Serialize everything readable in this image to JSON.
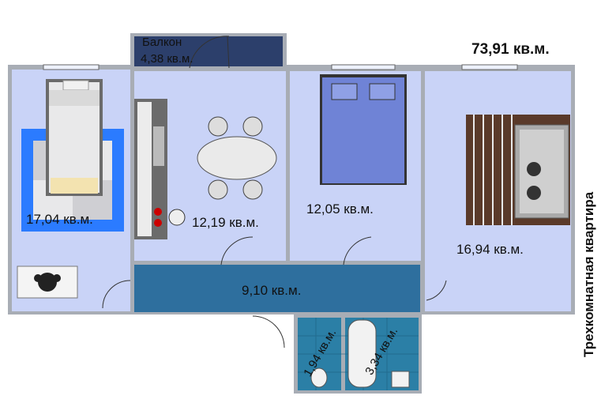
{
  "plan": {
    "title_vertical": "Трехкомнатная квартира",
    "total_area": "73,91 кв.м.",
    "balcony": {
      "name": "Балкон",
      "area": "4,38 кв.м."
    },
    "rooms": [
      {
        "id": "bedroom-left",
        "area": "17,04 кв.м."
      },
      {
        "id": "kitchen",
        "area": "12,19 кв.м."
      },
      {
        "id": "bedroom-middle",
        "area": "12,05 кв.м."
      },
      {
        "id": "living-room",
        "area": "16,94 кв.м."
      },
      {
        "id": "hallway",
        "area": "9,10 кв.м."
      },
      {
        "id": "toilet",
        "area": "1,94 кв.м."
      },
      {
        "id": "bathroom",
        "area": "3,34 кв.м."
      }
    ],
    "colors": {
      "floor": "#c9d3f7",
      "wall": "#a8adb5",
      "hallway": "#2e6f9e",
      "balcony": "#2c3f6b",
      "tile": "#2b7fa6",
      "bed_cover": "#6f83d6",
      "rug_dark": "#5a3a2a"
    }
  }
}
